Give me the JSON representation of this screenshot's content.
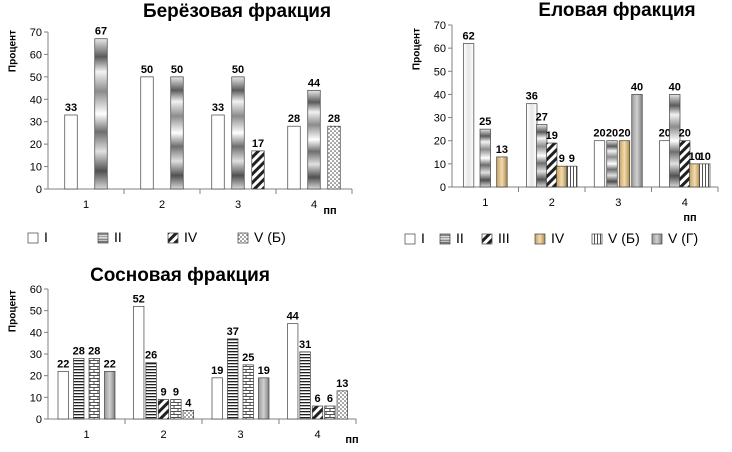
{
  "colors": {
    "axis": "#808080",
    "text": "#000000",
    "bar_stroke": "#404040"
  },
  "chart_data": [
    {
      "type": "bar",
      "title": "Берёзовая фракция",
      "ylabel": "Процент",
      "xlabel": "пп",
      "ylim": [
        0,
        70
      ],
      "yticks": [
        0,
        10,
        20,
        30,
        40,
        50,
        60,
        70
      ],
      "categories": [
        "1",
        "2",
        "3",
        "4"
      ],
      "legend_position": "bottom",
      "series": [
        {
          "name": "I",
          "pattern": "white",
          "values": [
            33,
            50,
            33,
            28
          ]
        },
        {
          "name": "II",
          "pattern": "metal",
          "values": [
            67,
            50,
            50,
            44
          ]
        },
        {
          "name": "IV",
          "pattern": "diag",
          "values": [
            null,
            null,
            17,
            null
          ]
        },
        {
          "name": "V (Б)",
          "pattern": "dots",
          "values": [
            null,
            null,
            null,
            28
          ]
        }
      ]
    },
    {
      "type": "bar",
      "title": "Еловая фракция",
      "ylabel": "Процент",
      "xlabel": "пп",
      "ylim": [
        0,
        70
      ],
      "yticks": [
        0,
        10,
        20,
        30,
        40,
        50,
        60,
        70
      ],
      "categories": [
        "1",
        "2",
        "3",
        "4"
      ],
      "legend_position": "bottom",
      "series": [
        {
          "name": "I",
          "pattern": "white",
          "values": [
            null,
            null,
            20,
            20
          ]
        },
        {
          "name": "II",
          "pattern": "pale",
          "values": [
            62,
            36,
            null,
            null
          ]
        },
        {
          "name": "II",
          "pattern": "metal",
          "values": [
            25,
            27,
            20,
            40
          ]
        },
        {
          "name": "III",
          "pattern": "diag",
          "values": [
            null,
            19,
            null,
            20
          ]
        },
        {
          "name": "IV",
          "pattern": "tan",
          "values": [
            13,
            9,
            20,
            10
          ]
        },
        {
          "name": "V (Б)",
          "pattern": "vlines",
          "values": [
            null,
            9,
            null,
            10
          ]
        },
        {
          "name": "V (Г)",
          "pattern": "grey",
          "values": [
            null,
            null,
            40,
            null
          ]
        }
      ],
      "legend_names": [
        "I",
        "II",
        "III",
        "IV",
        "V (Б)",
        "V (Г)"
      ]
    },
    {
      "type": "bar",
      "title": "Сосновая фракция",
      "ylabel": "Процент",
      "xlabel": "пп",
      "ylim": [
        0,
        60
      ],
      "yticks": [
        0,
        10,
        20,
        30,
        40,
        50,
        60
      ],
      "categories": [
        "1",
        "2",
        "3",
        "4"
      ],
      "legend_position": "none",
      "series": [
        {
          "name": "I",
          "pattern": "white",
          "values": [
            22,
            52,
            19,
            44
          ]
        },
        {
          "name": "II",
          "pattern": "hlines",
          "values": [
            28,
            26,
            37,
            31
          ]
        },
        {
          "name": "III",
          "pattern": "diag",
          "values": [
            null,
            9,
            null,
            6
          ]
        },
        {
          "name": "IV",
          "pattern": "brick",
          "values": [
            28,
            9,
            25,
            6
          ]
        },
        {
          "name": "V (Б)",
          "pattern": "dots",
          "values": [
            null,
            4,
            null,
            13
          ]
        },
        {
          "name": "V (Г)",
          "pattern": "grey",
          "values": [
            22,
            null,
            19,
            null
          ]
        }
      ]
    }
  ]
}
